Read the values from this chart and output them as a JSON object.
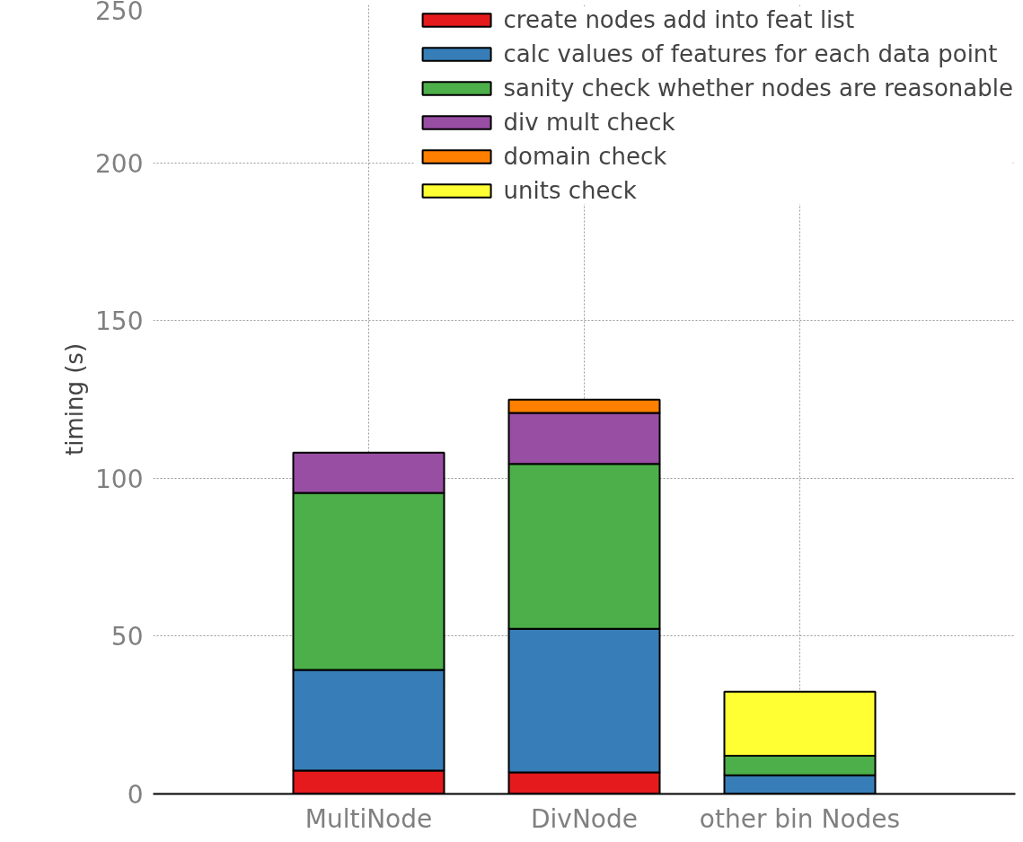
{
  "chart_data": {
    "type": "bar",
    "stacked": true,
    "ylabel": "timing (s)",
    "categories": [
      "MultiNode",
      "DivNode",
      "other bin Nodes"
    ],
    "ylim": [
      0,
      250
    ],
    "yticks": [
      0,
      50,
      100,
      150,
      200,
      250
    ],
    "grid": true,
    "legend": "top right",
    "series": [
      {
        "name": "create nodes add into feat list",
        "color": "#e41a1c",
        "values": [
          7.4,
          6.8,
          null
        ]
      },
      {
        "name": "calc values of features for each data point",
        "color": "#377eb8",
        "values": [
          31.9,
          45.5,
          5.9
        ]
      },
      {
        "name": "sanity check whether nodes are reasonable",
        "color": "#4daf4a",
        "values": [
          56.1,
          52.3,
          6.2
        ]
      },
      {
        "name": "div mult check",
        "color": "#984ea3",
        "values": [
          12.7,
          16.1,
          null
        ]
      },
      {
        "name": "domain check",
        "color": "#ff7f00",
        "values": [
          null,
          4.2,
          null
        ]
      },
      {
        "name": "units check",
        "color": "#ffff33",
        "values": [
          null,
          null,
          20.3
        ]
      }
    ]
  }
}
